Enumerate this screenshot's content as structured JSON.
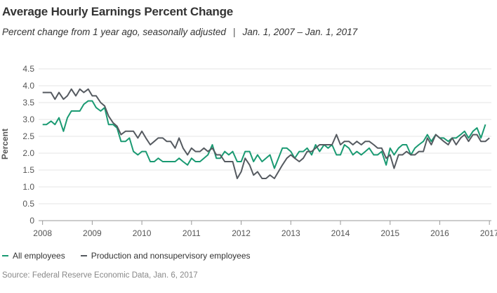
{
  "title": "Average Hourly Earnings Percent Change",
  "subtitle": {
    "measure": "Percent change from 1 year ago, seasonally adjusted",
    "separator": "|",
    "range": "Jan. 1, 2007 – Jan. 1, 2017"
  },
  "source": "Source: Federal Reserve Economic Data, Jan. 6, 2017",
  "chart_data": {
    "type": "line",
    "title": "Average Hourly Earnings Percent Change",
    "xlabel": "",
    "ylabel": "Percent",
    "xlim": [
      2007.92,
      2017.04
    ],
    "ylim": [
      0,
      4.5
    ],
    "yticks": [
      "0",
      "0.5",
      "1.0",
      "1.5",
      "2.0",
      "2.5",
      "3.0",
      "3.5",
      "4.0",
      "4.5"
    ],
    "xticks": [
      "2008",
      "2009",
      "2010",
      "2011",
      "2012",
      "2013",
      "2014",
      "2015",
      "2016",
      "2017"
    ],
    "grid": "horizontal",
    "legend_position": "bottom-left",
    "series": [
      {
        "name": "All employees",
        "color": "#1a9a72",
        "points": [
          [
            2008.0,
            2.85
          ],
          [
            2008.08,
            2.85
          ],
          [
            2008.17,
            2.95
          ],
          [
            2008.25,
            2.85
          ],
          [
            2008.33,
            3.05
          ],
          [
            2008.42,
            2.65
          ],
          [
            2008.5,
            3.05
          ],
          [
            2008.58,
            3.25
          ],
          [
            2008.67,
            3.25
          ],
          [
            2008.75,
            3.25
          ],
          [
            2008.83,
            3.45
          ],
          [
            2008.92,
            3.55
          ],
          [
            2009.0,
            3.55
          ],
          [
            2009.08,
            3.35
          ],
          [
            2009.17,
            3.25
          ],
          [
            2009.25,
            3.35
          ],
          [
            2009.33,
            2.85
          ],
          [
            2009.42,
            2.85
          ],
          [
            2009.5,
            2.75
          ],
          [
            2009.58,
            2.35
          ],
          [
            2009.67,
            2.35
          ],
          [
            2009.75,
            2.45
          ],
          [
            2009.83,
            2.05
          ],
          [
            2009.92,
            1.95
          ],
          [
            2010.0,
            2.05
          ],
          [
            2010.08,
            2.05
          ],
          [
            2010.17,
            1.75
          ],
          [
            2010.25,
            1.75
          ],
          [
            2010.33,
            1.85
          ],
          [
            2010.42,
            1.75
          ],
          [
            2010.5,
            1.75
          ],
          [
            2010.58,
            1.75
          ],
          [
            2010.67,
            1.75
          ],
          [
            2010.75,
            1.85
          ],
          [
            2010.83,
            1.75
          ],
          [
            2010.92,
            1.65
          ],
          [
            2011.0,
            1.85
          ],
          [
            2011.08,
            1.75
          ],
          [
            2011.17,
            1.75
          ],
          [
            2011.25,
            1.85
          ],
          [
            2011.33,
            1.95
          ],
          [
            2011.42,
            2.25
          ],
          [
            2011.5,
            1.85
          ],
          [
            2011.58,
            1.85
          ],
          [
            2011.67,
            2.05
          ],
          [
            2011.75,
            1.95
          ],
          [
            2011.83,
            2.05
          ],
          [
            2011.92,
            1.75
          ],
          [
            2012.0,
            1.75
          ],
          [
            2012.08,
            2.05
          ],
          [
            2012.17,
            2.05
          ],
          [
            2012.25,
            1.75
          ],
          [
            2012.33,
            1.95
          ],
          [
            2012.42,
            1.75
          ],
          [
            2012.5,
            1.85
          ],
          [
            2012.58,
            1.95
          ],
          [
            2012.67,
            1.55
          ],
          [
            2012.75,
            1.85
          ],
          [
            2012.83,
            2.15
          ],
          [
            2012.92,
            2.15
          ],
          [
            2013.0,
            2.05
          ],
          [
            2013.08,
            1.85
          ],
          [
            2013.17,
            2.05
          ],
          [
            2013.25,
            2.05
          ],
          [
            2013.33,
            2.15
          ],
          [
            2013.42,
            1.95
          ],
          [
            2013.5,
            2.25
          ],
          [
            2013.58,
            2.05
          ],
          [
            2013.67,
            2.25
          ],
          [
            2013.75,
            2.15
          ],
          [
            2013.83,
            2.25
          ],
          [
            2013.92,
            1.95
          ],
          [
            2014.0,
            1.95
          ],
          [
            2014.08,
            2.25
          ],
          [
            2014.17,
            2.15
          ],
          [
            2014.25,
            1.95
          ],
          [
            2014.33,
            2.05
          ],
          [
            2014.42,
            1.95
          ],
          [
            2014.5,
            2.05
          ],
          [
            2014.58,
            2.15
          ],
          [
            2014.67,
            1.95
          ],
          [
            2014.75,
            1.95
          ],
          [
            2014.83,
            2.05
          ],
          [
            2014.92,
            1.65
          ],
          [
            2015.0,
            2.15
          ],
          [
            2015.08,
            1.95
          ],
          [
            2015.17,
            2.15
          ],
          [
            2015.25,
            2.25
          ],
          [
            2015.33,
            2.25
          ],
          [
            2015.42,
            1.95
          ],
          [
            2015.5,
            2.15
          ],
          [
            2015.58,
            2.25
          ],
          [
            2015.67,
            2.35
          ],
          [
            2015.75,
            2.55
          ],
          [
            2015.83,
            2.35
          ],
          [
            2015.92,
            2.55
          ],
          [
            2016.0,
            2.45
          ],
          [
            2016.08,
            2.45
          ],
          [
            2016.17,
            2.35
          ],
          [
            2016.25,
            2.45
          ],
          [
            2016.33,
            2.45
          ],
          [
            2016.42,
            2.55
          ],
          [
            2016.5,
            2.65
          ],
          [
            2016.58,
            2.45
          ],
          [
            2016.67,
            2.65
          ],
          [
            2016.75,
            2.75
          ],
          [
            2016.83,
            2.45
          ],
          [
            2016.92,
            2.85
          ]
        ]
      },
      {
        "name": "Production and nonsupervisory employees",
        "color": "#555a60",
        "points": [
          [
            2008.0,
            3.8
          ],
          [
            2008.08,
            3.8
          ],
          [
            2008.17,
            3.8
          ],
          [
            2008.25,
            3.6
          ],
          [
            2008.33,
            3.8
          ],
          [
            2008.42,
            3.6
          ],
          [
            2008.5,
            3.7
          ],
          [
            2008.58,
            3.9
          ],
          [
            2008.67,
            3.7
          ],
          [
            2008.75,
            3.9
          ],
          [
            2008.83,
            3.8
          ],
          [
            2008.92,
            3.9
          ],
          [
            2009.0,
            3.7
          ],
          [
            2009.08,
            3.7
          ],
          [
            2009.17,
            3.5
          ],
          [
            2009.25,
            3.4
          ],
          [
            2009.33,
            3.1
          ],
          [
            2009.42,
            2.9
          ],
          [
            2009.5,
            2.8
          ],
          [
            2009.58,
            2.55
          ],
          [
            2009.67,
            2.65
          ],
          [
            2009.75,
            2.65
          ],
          [
            2009.83,
            2.65
          ],
          [
            2009.92,
            2.45
          ],
          [
            2010.0,
            2.65
          ],
          [
            2010.08,
            2.45
          ],
          [
            2010.17,
            2.25
          ],
          [
            2010.25,
            2.35
          ],
          [
            2010.33,
            2.45
          ],
          [
            2010.42,
            2.45
          ],
          [
            2010.5,
            2.35
          ],
          [
            2010.58,
            2.35
          ],
          [
            2010.67,
            2.15
          ],
          [
            2010.75,
            2.45
          ],
          [
            2010.83,
            2.15
          ],
          [
            2010.92,
            1.95
          ],
          [
            2011.0,
            2.15
          ],
          [
            2011.08,
            2.05
          ],
          [
            2011.17,
            2.05
          ],
          [
            2011.25,
            2.15
          ],
          [
            2011.33,
            2.05
          ],
          [
            2011.42,
            2.15
          ],
          [
            2011.5,
            1.95
          ],
          [
            2011.58,
            1.95
          ],
          [
            2011.67,
            1.75
          ],
          [
            2011.75,
            1.75
          ],
          [
            2011.83,
            1.75
          ],
          [
            2011.92,
            1.25
          ],
          [
            2012.0,
            1.45
          ],
          [
            2012.08,
            1.85
          ],
          [
            2012.17,
            1.65
          ],
          [
            2012.25,
            1.35
          ],
          [
            2012.33,
            1.45
          ],
          [
            2012.42,
            1.25
          ],
          [
            2012.5,
            1.25
          ],
          [
            2012.58,
            1.35
          ],
          [
            2012.67,
            1.25
          ],
          [
            2012.75,
            1.45
          ],
          [
            2012.83,
            1.65
          ],
          [
            2012.92,
            1.85
          ],
          [
            2013.0,
            1.95
          ],
          [
            2013.08,
            1.85
          ],
          [
            2013.17,
            1.75
          ],
          [
            2013.25,
            1.85
          ],
          [
            2013.33,
            2.05
          ],
          [
            2013.42,
            2.05
          ],
          [
            2013.5,
            2.15
          ],
          [
            2013.58,
            2.25
          ],
          [
            2013.67,
            2.25
          ],
          [
            2013.75,
            2.25
          ],
          [
            2013.83,
            2.25
          ],
          [
            2013.92,
            2.55
          ],
          [
            2014.0,
            2.25
          ],
          [
            2014.08,
            2.35
          ],
          [
            2014.17,
            2.35
          ],
          [
            2014.25,
            2.25
          ],
          [
            2014.33,
            2.35
          ],
          [
            2014.42,
            2.25
          ],
          [
            2014.5,
            2.35
          ],
          [
            2014.58,
            2.35
          ],
          [
            2014.67,
            2.25
          ],
          [
            2014.75,
            2.15
          ],
          [
            2014.83,
            2.15
          ],
          [
            2014.92,
            1.85
          ],
          [
            2015.0,
            1.95
          ],
          [
            2015.08,
            1.55
          ],
          [
            2015.17,
            1.95
          ],
          [
            2015.25,
            1.95
          ],
          [
            2015.33,
            2.05
          ],
          [
            2015.42,
            1.95
          ],
          [
            2015.5,
            1.95
          ],
          [
            2015.58,
            2.05
          ],
          [
            2015.67,
            2.05
          ],
          [
            2015.75,
            2.45
          ],
          [
            2015.83,
            2.25
          ],
          [
            2015.92,
            2.55
          ],
          [
            2016.0,
            2.45
          ],
          [
            2016.08,
            2.35
          ],
          [
            2016.17,
            2.25
          ],
          [
            2016.25,
            2.45
          ],
          [
            2016.33,
            2.25
          ],
          [
            2016.42,
            2.45
          ],
          [
            2016.5,
            2.55
          ],
          [
            2016.58,
            2.35
          ],
          [
            2016.67,
            2.55
          ],
          [
            2016.75,
            2.55
          ],
          [
            2016.83,
            2.35
          ],
          [
            2016.92,
            2.35
          ],
          [
            2017.0,
            2.45
          ]
        ]
      }
    ]
  }
}
